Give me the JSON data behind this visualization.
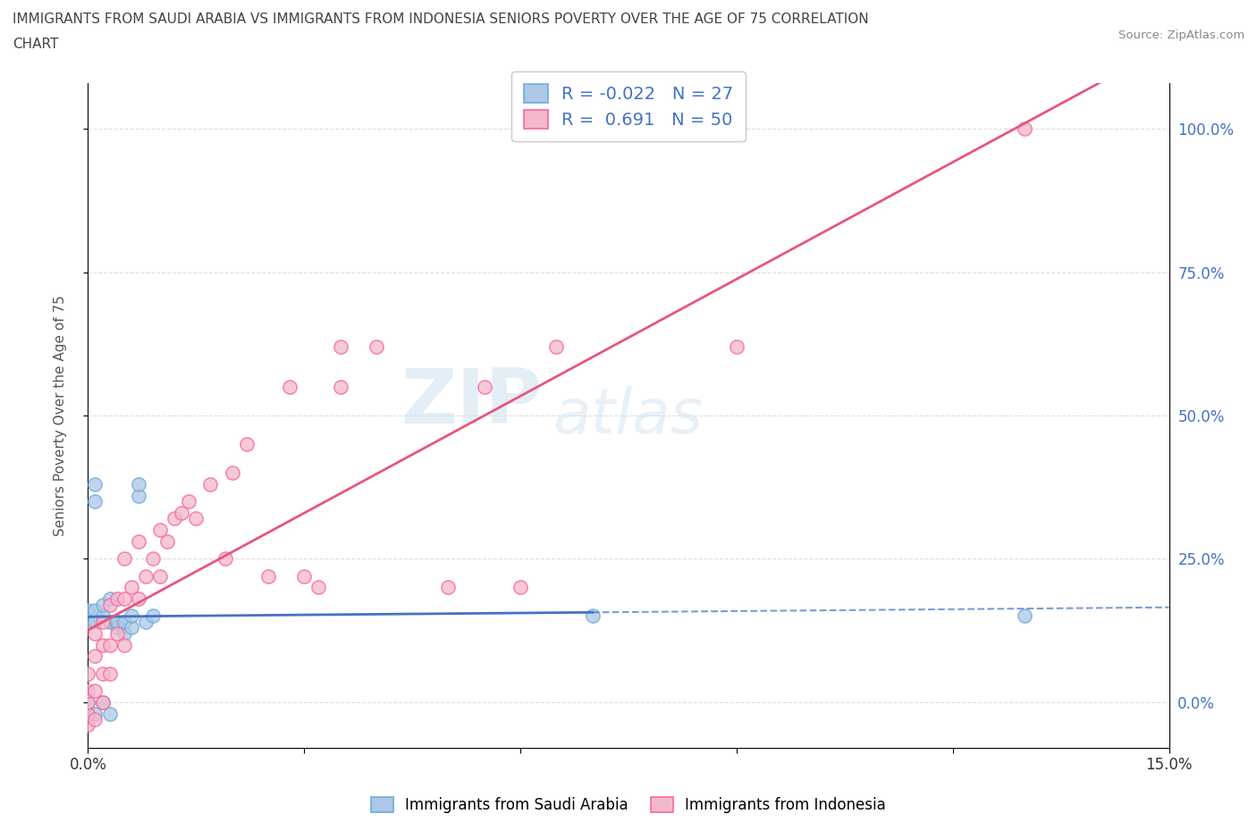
{
  "title_line1": "IMMIGRANTS FROM SAUDI ARABIA VS IMMIGRANTS FROM INDONESIA SENIORS POVERTY OVER THE AGE OF 75 CORRELATION",
  "title_line2": "CHART",
  "source": "Source: ZipAtlas.com",
  "ylabel": "Seniors Poverty Over the Age of 75",
  "y_ticks": [
    0.0,
    0.25,
    0.5,
    0.75,
    1.0
  ],
  "y_tick_labels_right": [
    "0.0%",
    "25.0%",
    "50.0%",
    "75.0%",
    "100.0%"
  ],
  "xlim": [
    0.0,
    0.15
  ],
  "ylim": [
    -0.08,
    1.08
  ],
  "saudi_color": "#aec6e8",
  "saudi_edge": "#6baed6",
  "indonesia_color": "#f4b8cc",
  "indonesia_edge": "#f768a1",
  "trend_saudi_color": "#4472c4",
  "trend_indonesia_color": "#e8567a",
  "R_saudi": -0.022,
  "N_saudi": 27,
  "R_indonesia": 0.691,
  "N_indonesia": 50,
  "watermark_zip": "ZIP",
  "watermark_atlas": "atlas",
  "legend_label_saudi": "Immigrants from Saudi Arabia",
  "legend_label_indonesia": "Immigrants from Indonesia",
  "saudi_x": [
    0.0,
    0.0,
    0.0,
    0.0,
    0.001,
    0.001,
    0.001,
    0.001,
    0.001,
    0.002,
    0.002,
    0.002,
    0.003,
    0.003,
    0.003,
    0.004,
    0.004,
    0.005,
    0.005,
    0.006,
    0.006,
    0.007,
    0.007,
    0.008,
    0.009,
    0.07,
    0.13
  ],
  "saudi_y": [
    0.14,
    0.16,
    -0.02,
    0.0,
    0.14,
    0.16,
    0.35,
    0.38,
    -0.02,
    0.15,
    0.17,
    0.0,
    0.14,
    0.18,
    -0.02,
    0.13,
    0.14,
    0.12,
    0.14,
    0.13,
    0.15,
    0.36,
    0.38,
    0.14,
    0.15,
    0.15,
    0.15
  ],
  "indonesia_x": [
    0.0,
    0.0,
    0.0,
    0.0,
    0.0,
    0.001,
    0.001,
    0.001,
    0.001,
    0.002,
    0.002,
    0.002,
    0.002,
    0.003,
    0.003,
    0.003,
    0.004,
    0.004,
    0.005,
    0.005,
    0.005,
    0.006,
    0.007,
    0.007,
    0.008,
    0.009,
    0.01,
    0.01,
    0.011,
    0.012,
    0.013,
    0.014,
    0.015,
    0.017,
    0.019,
    0.02,
    0.022,
    0.025,
    0.028,
    0.03,
    0.032,
    0.035,
    0.035,
    0.04,
    0.05,
    0.055,
    0.06,
    0.065,
    0.09,
    0.13
  ],
  "indonesia_y": [
    -0.04,
    -0.02,
    0.0,
    0.02,
    0.05,
    -0.03,
    0.02,
    0.08,
    0.12,
    0.0,
    0.05,
    0.1,
    0.14,
    0.05,
    0.1,
    0.17,
    0.12,
    0.18,
    0.1,
    0.18,
    0.25,
    0.2,
    0.18,
    0.28,
    0.22,
    0.25,
    0.22,
    0.3,
    0.28,
    0.32,
    0.33,
    0.35,
    0.32,
    0.38,
    0.25,
    0.4,
    0.45,
    0.22,
    0.55,
    0.22,
    0.2,
    0.55,
    0.62,
    0.62,
    0.2,
    0.55,
    0.2,
    0.62,
    0.62,
    1.0
  ]
}
